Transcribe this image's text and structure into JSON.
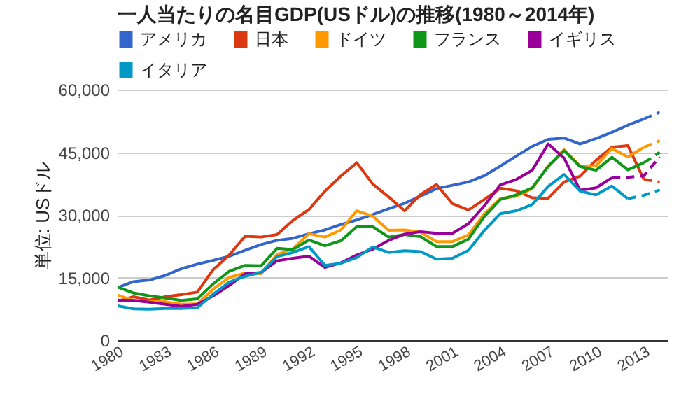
{
  "chart_data": {
    "type": "line",
    "title": "一人当たりの名目GDP(USドル)の推移(1980～2014年)",
    "ylabel": "単位: USドル",
    "x": [
      1980,
      1981,
      1982,
      1983,
      1984,
      1985,
      1986,
      1987,
      1988,
      1989,
      1990,
      1991,
      1992,
      1993,
      1994,
      1995,
      1996,
      1997,
      1998,
      1999,
      2000,
      2001,
      2002,
      2003,
      2004,
      2005,
      2006,
      2007,
      2008,
      2009,
      2010,
      2011,
      2012,
      2013
    ],
    "xlim": [
      1980,
      2014.5
    ],
    "xticks": [
      1980,
      1983,
      1986,
      1989,
      1992,
      1995,
      1998,
      2001,
      2004,
      2007,
      2010,
      2013
    ],
    "ylim": [
      0,
      60000
    ],
    "yticks": [
      0,
      {
        "value": 15000,
        "label": "15,000"
      },
      {
        "value": 30000,
        "label": "30,000"
      },
      {
        "value": 45000,
        "label": "45,000"
      },
      {
        "value": 60000,
        "label": "60,000"
      }
    ],
    "grid": "y",
    "legend": "top",
    "line_style": "solid",
    "series": [
      {
        "name": "アメリカ",
        "color": "#3366cc",
        "values": [
          12600,
          14000,
          14400,
          15500,
          17100,
          18200,
          19100,
          20100,
          21500,
          22900,
          23900,
          24400,
          25500,
          26400,
          27700,
          28800,
          30100,
          31500,
          32800,
          34500,
          36300,
          37100,
          37900,
          39400,
          41700,
          44100,
          46400,
          48100,
          48400,
          47000,
          48300,
          49800,
          51500,
          53000
        ]
      },
      {
        "name": "日本",
        "color": "#dc3912",
        "values": [
          9300,
          10400,
          9600,
          10400,
          10900,
          11500,
          16900,
          20400,
          24900,
          24700,
          25300,
          28700,
          31300,
          35700,
          39300,
          42500,
          37400,
          34300,
          31000,
          34900,
          37300,
          32700,
          31200,
          33700,
          36400,
          35800,
          34100,
          34000,
          37900,
          39300,
          43100,
          46200,
          46600,
          38500
        ]
      },
      {
        "name": "ドイツ",
        "color": "#ff9900",
        "values": [
          10800,
          9500,
          9200,
          9200,
          8600,
          8700,
          12200,
          15000,
          16100,
          15900,
          20500,
          21900,
          25500,
          24700,
          26400,
          31000,
          29700,
          26300,
          26400,
          25900,
          23600,
          23600,
          25200,
          30300,
          33900,
          34500,
          36300,
          41700,
          45600,
          41700,
          41800,
          45900,
          43900,
          46200
        ]
      },
      {
        "name": "フランス",
        "color": "#109618",
        "values": [
          12700,
          11300,
          10600,
          10100,
          9500,
          9900,
          13500,
          16500,
          17900,
          17800,
          22000,
          21700,
          24000,
          22600,
          23800,
          27200,
          27200,
          24700,
          25300,
          24800,
          22400,
          22400,
          24200,
          29600,
          33700,
          34800,
          36500,
          41600,
          45400,
          41600,
          40700,
          43800,
          40800,
          42500
        ]
      },
      {
        "name": "イギリス",
        "color": "#990099",
        "x": [
          1980,
          1981,
          1982,
          1983,
          1984,
          1985,
          1986,
          1987,
          1988,
          1989,
          1990,
          1991,
          1992,
          1993,
          1994,
          1995,
          1996,
          1997,
          1998,
          1999,
          2000,
          2001,
          2002,
          2003,
          2004,
          2005,
          2006,
          2007,
          2008,
          2009,
          2010,
          2011
        ],
        "values": [
          9600,
          9500,
          9100,
          8600,
          8100,
          8600,
          10600,
          13100,
          15900,
          16200,
          19000,
          19600,
          20100,
          17400,
          18500,
          20400,
          21800,
          23900,
          25400,
          26000,
          25600,
          25600,
          27900,
          32200,
          37200,
          38500,
          40700,
          47000,
          43600,
          35900,
          36500,
          38900
        ]
      },
      {
        "name": "イタリア",
        "color": "#0099c6",
        "x": [
          1980,
          1981,
          1982,
          1983,
          1984,
          1985,
          1986,
          1987,
          1988,
          1989,
          1990,
          1991,
          1992,
          1993,
          1994,
          1995,
          1996,
          1997,
          1998,
          1999,
          2000,
          2001,
          2002,
          2003,
          2004,
          2005,
          2006,
          2007,
          2008,
          2009,
          2010,
          2011,
          2012
        ],
        "values": [
          8200,
          7500,
          7400,
          7600,
          7600,
          7800,
          11000,
          13900,
          15300,
          16200,
          20000,
          21000,
          22400,
          17900,
          18400,
          19800,
          22300,
          21000,
          21400,
          21200,
          19400,
          19600,
          21500,
          26300,
          30300,
          31000,
          32500,
          36800,
          39700,
          35700,
          34800,
          36900,
          33900
        ]
      },
      {
        "color": "#3366cc",
        "line_style": "dashed",
        "x": [
          2013,
          2014
        ],
        "values": [
          53000,
          54600
        ]
      },
      {
        "color": "#dc3912",
        "line_style": "dashed",
        "x": [
          2013,
          2014
        ],
        "values": [
          38500,
          37900
        ]
      },
      {
        "color": "#ff9900",
        "line_style": "dashed",
        "x": [
          2013,
          2014
        ],
        "values": [
          46200,
          47800
        ]
      },
      {
        "color": "#109618",
        "line_style": "dashed",
        "x": [
          2013,
          2014
        ],
        "values": [
          42500,
          45000
        ]
      },
      {
        "color": "#990099",
        "line_style": "dashed",
        "x": [
          2011,
          2012,
          2013,
          2014
        ],
        "values": [
          38900,
          39000,
          39400,
          43900
        ]
      },
      {
        "color": "#0099c6",
        "line_style": "dashed",
        "x": [
          2012,
          2013,
          2014
        ],
        "values": [
          33900,
          34700,
          36000
        ]
      }
    ]
  }
}
